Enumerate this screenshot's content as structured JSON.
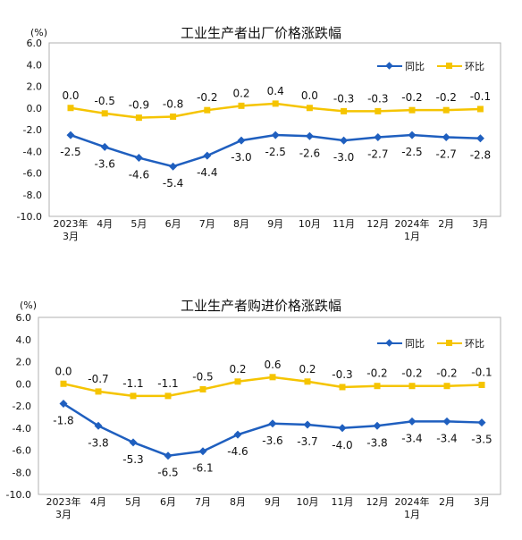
{
  "colors": {
    "yoy": "#1f5fbf",
    "mom": "#f5c400",
    "grid": "#cccccc",
    "axis": "#888888"
  },
  "chart_data": [
    {
      "type": "line",
      "title": "工业生产者出厂价格涨跌幅",
      "unit": "(%)",
      "categories": [
        [
          "2023年",
          "3月"
        ],
        [
          "4月"
        ],
        [
          "5月"
        ],
        [
          "6月"
        ],
        [
          "7月"
        ],
        [
          "8月"
        ],
        [
          "9月"
        ],
        [
          "10月"
        ],
        [
          "11月"
        ],
        [
          "12月"
        ],
        [
          "2024年",
          "1月"
        ],
        [
          "2月"
        ],
        [
          "3月"
        ]
      ],
      "y_ticks": [
        "6.0",
        "4.0",
        "2.0",
        "0.0",
        "-2.0",
        "-4.0",
        "-6.0",
        "-8.0",
        "-10.0"
      ],
      "ylim": [
        -10,
        6
      ],
      "legend_position": "top-right",
      "series": [
        {
          "name": "同比",
          "marker": "diamond",
          "values": [
            -2.5,
            -3.6,
            -4.6,
            -5.4,
            -4.4,
            -3.0,
            -2.5,
            -2.6,
            -3.0,
            -2.7,
            -2.5,
            -2.7,
            -2.8
          ],
          "labels": [
            "-2.5",
            "-3.6",
            "-4.6",
            "-5.4",
            "-4.4",
            "-3.0",
            "-2.5",
            "-2.6",
            "-3.0",
            "-2.7",
            "-2.5",
            "-2.7",
            "-2.8"
          ]
        },
        {
          "name": "环比",
          "marker": "square",
          "values": [
            0.0,
            -0.5,
            -0.9,
            -0.8,
            -0.2,
            0.2,
            0.4,
            0.0,
            -0.3,
            -0.3,
            -0.2,
            -0.2,
            -0.1
          ],
          "labels": [
            "0.0",
            "-0.5",
            "-0.9",
            "-0.8",
            "-0.2",
            "0.2",
            "0.4",
            "0.0",
            "-0.3",
            "-0.3",
            "-0.2",
            "-0.2",
            "-0.1"
          ]
        }
      ]
    },
    {
      "type": "line",
      "title": "工业生产者购进价格涨跌幅",
      "unit": "(%)",
      "categories": [
        [
          "2023年",
          "3月"
        ],
        [
          "4月"
        ],
        [
          "5月"
        ],
        [
          "6月"
        ],
        [
          "7月"
        ],
        [
          "8月"
        ],
        [
          "9月"
        ],
        [
          "10月"
        ],
        [
          "11月"
        ],
        [
          "12月"
        ],
        [
          "2024年",
          "1月"
        ],
        [
          "2月"
        ],
        [
          "3月"
        ]
      ],
      "y_ticks": [
        "6.0",
        "4.0",
        "2.0",
        "0.0",
        "-2.0",
        "-4.0",
        "-6.0",
        "-8.0",
        "-10.0"
      ],
      "ylim": [
        -10,
        6
      ],
      "legend_position": "top-right",
      "series": [
        {
          "name": "同比",
          "marker": "diamond",
          "values": [
            -1.8,
            -3.8,
            -5.3,
            -6.5,
            -6.1,
            -4.6,
            -3.6,
            -3.7,
            -4.0,
            -3.8,
            -3.4,
            -3.4,
            -3.5
          ],
          "labels": [
            "-1.8",
            "-3.8",
            "-5.3",
            "-6.5",
            "-6.1",
            "-4.6",
            "-3.6",
            "-3.7",
            "-4.0",
            "-3.8",
            "-3.4",
            "-3.4",
            "-3.5"
          ]
        },
        {
          "name": "环比",
          "marker": "square",
          "values": [
            0.0,
            -0.7,
            -1.1,
            -1.1,
            -0.5,
            0.2,
            0.6,
            0.2,
            -0.3,
            -0.2,
            -0.2,
            -0.2,
            -0.1
          ],
          "labels": [
            "0.0",
            "-0.7",
            "-1.1",
            "-1.1",
            "-0.5",
            "0.2",
            "0.6",
            "0.2",
            "-0.3",
            "-0.2",
            "-0.2",
            "-0.2",
            "-0.1"
          ]
        }
      ]
    }
  ]
}
